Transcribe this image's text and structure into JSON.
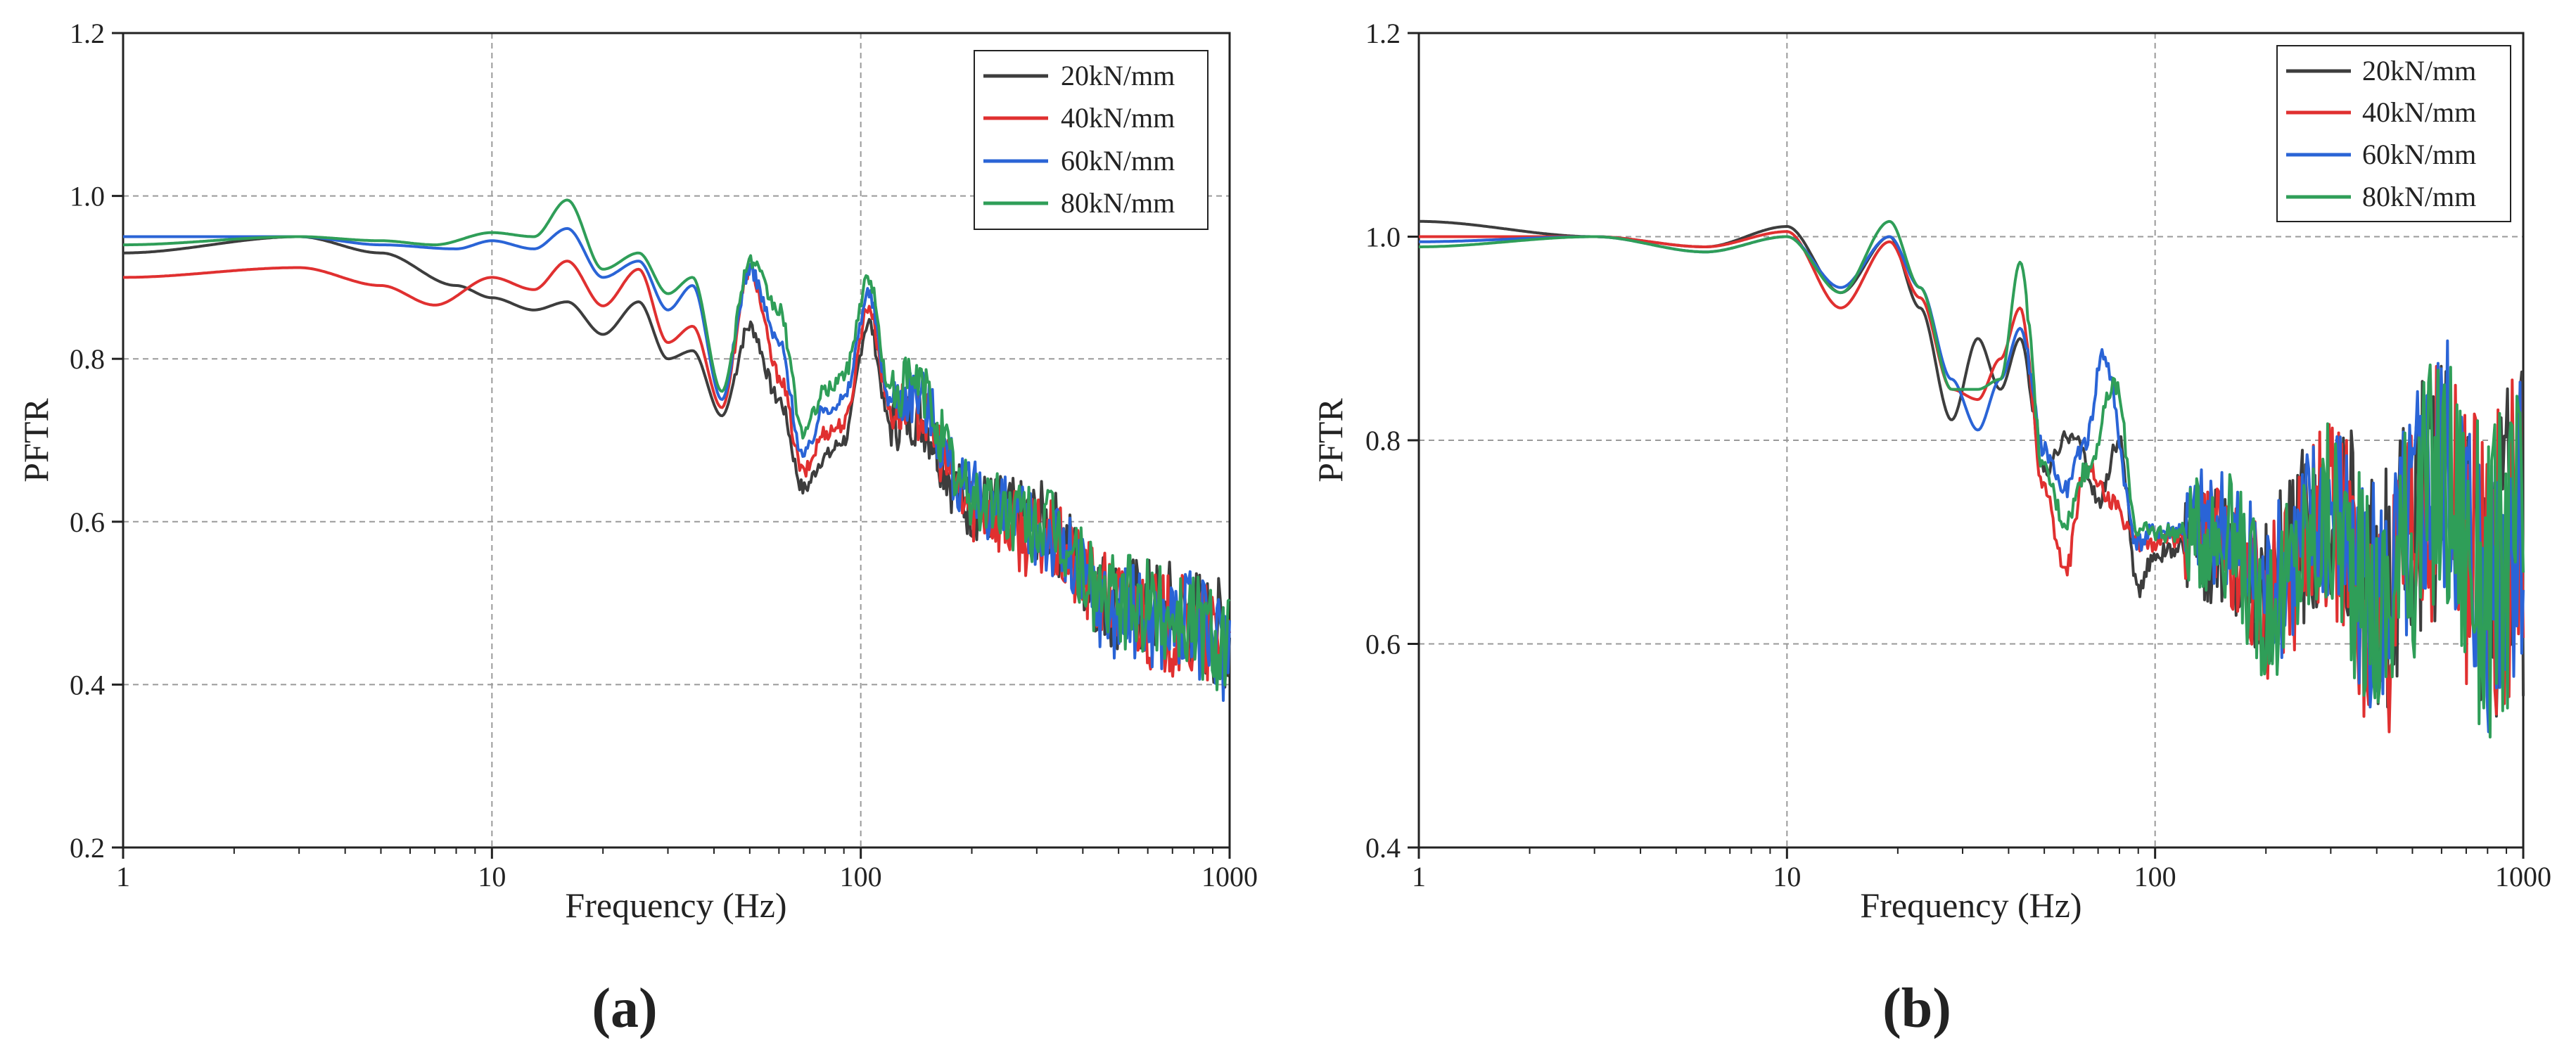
{
  "chart_data": [
    {
      "type": "line",
      "panel": "(a)",
      "xlabel": "Frequency (Hz)",
      "ylabel": "PFTR",
      "xscale": "log",
      "xlim": [
        1,
        1000
      ],
      "ylim": [
        0.2,
        1.2
      ],
      "xticks": [
        1,
        10,
        100,
        1000
      ],
      "xtick_labels": [
        "1",
        "10",
        "100",
        "1000"
      ],
      "yticks": [
        0.2,
        0.4,
        0.6,
        0.8,
        1.0,
        1.2
      ],
      "ytick_labels": [
        "0.2",
        "0.4",
        "0.6",
        "0.8",
        "1.0",
        "1.2"
      ],
      "grid": true,
      "legend": "top-right",
      "series": [
        {
          "name": "20kN/mm",
          "color": "#3d3d3d",
          "x": [
            1,
            3,
            5,
            8,
            10,
            13,
            16,
            20,
            25,
            30,
            35,
            42,
            50,
            60,
            70,
            80,
            90,
            105,
            120,
            140,
            200,
            300,
            500,
            700,
            1000
          ],
          "y": [
            0.93,
            0.95,
            0.93,
            0.89,
            0.875,
            0.86,
            0.87,
            0.83,
            0.87,
            0.8,
            0.81,
            0.73,
            0.84,
            0.75,
            0.64,
            0.68,
            0.7,
            0.845,
            0.72,
            0.73,
            0.62,
            0.6,
            0.5,
            0.49,
            0.46
          ]
        },
        {
          "name": "40kN/mm",
          "color": "#e03030",
          "x": [
            1,
            3,
            5,
            7,
            10,
            13,
            16,
            20,
            25,
            30,
            35,
            42,
            50,
            60,
            70,
            80,
            90,
            105,
            120,
            140,
            200,
            300,
            500,
            700,
            1000
          ],
          "y": [
            0.9,
            0.912,
            0.89,
            0.866,
            0.9,
            0.885,
            0.92,
            0.865,
            0.91,
            0.82,
            0.84,
            0.74,
            0.91,
            0.78,
            0.66,
            0.71,
            0.72,
            0.865,
            0.74,
            0.74,
            0.62,
            0.58,
            0.5,
            0.47,
            0.45
          ]
        },
        {
          "name": "60kN/mm",
          "color": "#2a64d6",
          "x": [
            1,
            3,
            5,
            8,
            10,
            13,
            16,
            20,
            25,
            30,
            35,
            42,
            50,
            60,
            70,
            80,
            90,
            105,
            120,
            140,
            200,
            300,
            500,
            700,
            1000
          ],
          "y": [
            0.95,
            0.95,
            0.94,
            0.935,
            0.945,
            0.935,
            0.96,
            0.9,
            0.92,
            0.86,
            0.89,
            0.75,
            0.91,
            0.82,
            0.68,
            0.74,
            0.75,
            0.88,
            0.75,
            0.76,
            0.63,
            0.59,
            0.49,
            0.48,
            0.45
          ]
        },
        {
          "name": "80kN/mm",
          "color": "#2f9e58",
          "x": [
            1,
            3,
            5,
            7,
            10,
            13,
            16,
            20,
            25,
            30,
            35,
            42,
            50,
            60,
            70,
            80,
            90,
            105,
            120,
            140,
            200,
            300,
            500,
            700,
            1000
          ],
          "y": [
            0.94,
            0.95,
            0.945,
            0.94,
            0.955,
            0.95,
            0.995,
            0.91,
            0.93,
            0.88,
            0.9,
            0.76,
            0.92,
            0.86,
            0.71,
            0.76,
            0.78,
            0.9,
            0.76,
            0.77,
            0.63,
            0.6,
            0.5,
            0.49,
            0.46
          ]
        }
      ]
    },
    {
      "type": "line",
      "panel": "(b)",
      "xlabel": "Frequency (Hz)",
      "ylabel": "PFTR",
      "xscale": "log",
      "xlim": [
        1,
        1000
      ],
      "ylim": [
        0.4,
        1.2
      ],
      "xticks": [
        1,
        10,
        100,
        1000
      ],
      "xtick_labels": [
        "1",
        "10",
        "100",
        "1000"
      ],
      "yticks": [
        0.4,
        0.6,
        0.8,
        1.0,
        1.2
      ],
      "ytick_labels": [
        "0.4",
        "0.6",
        "0.8",
        "1.0",
        "1.2"
      ],
      "grid": true,
      "legend": "top-right",
      "series": [
        {
          "name": "20kN/mm",
          "color": "#3d3d3d",
          "x": [
            1,
            3,
            6,
            10,
            14,
            19,
            23,
            28,
            33,
            38,
            43,
            50,
            60,
            70,
            80,
            90,
            100,
            150,
            200,
            300,
            400,
            600,
            800,
            1000
          ],
          "y": [
            1.015,
            1.0,
            0.99,
            1.01,
            0.945,
            1.0,
            0.93,
            0.82,
            0.9,
            0.85,
            0.9,
            0.77,
            0.81,
            0.74,
            0.8,
            0.65,
            0.69,
            0.7,
            0.66,
            0.74,
            0.65,
            0.75,
            0.68,
            0.7
          ]
        },
        {
          "name": "40kN/mm",
          "color": "#e03030",
          "x": [
            1,
            3,
            6,
            10,
            14,
            19,
            23,
            28,
            33,
            38,
            43,
            50,
            57,
            65,
            75,
            90,
            100,
            150,
            200,
            300,
            400,
            600,
            800,
            1000
          ],
          "y": [
            1.0,
            1.0,
            0.99,
            1.005,
            0.93,
            0.995,
            0.94,
            0.85,
            0.84,
            0.88,
            0.93,
            0.75,
            0.67,
            0.78,
            0.74,
            0.7,
            0.7,
            0.71,
            0.64,
            0.72,
            0.62,
            0.74,
            0.66,
            0.72
          ]
        },
        {
          "name": "60kN/mm",
          "color": "#2a64d6",
          "x": [
            1,
            3,
            6,
            10,
            14,
            19,
            23,
            28,
            33,
            38,
            43,
            50,
            57,
            65,
            72,
            90,
            100,
            150,
            200,
            300,
            400,
            600,
            800,
            1000
          ],
          "y": [
            0.995,
            1.0,
            0.985,
            1.0,
            0.95,
            1.0,
            0.95,
            0.86,
            0.81,
            0.86,
            0.91,
            0.79,
            0.75,
            0.8,
            0.885,
            0.7,
            0.71,
            0.72,
            0.65,
            0.73,
            0.64,
            0.77,
            0.67,
            0.73
          ]
        },
        {
          "name": "80kN/mm",
          "color": "#2f9e58",
          "x": [
            1,
            3,
            6,
            10,
            14,
            19,
            23,
            28,
            33,
            38,
            43,
            50,
            57,
            65,
            78,
            90,
            100,
            150,
            200,
            300,
            400,
            600,
            800,
            1000
          ],
          "y": [
            0.99,
            1.0,
            0.985,
            1.0,
            0.945,
            1.015,
            0.95,
            0.85,
            0.85,
            0.86,
            0.975,
            0.77,
            0.72,
            0.77,
            0.855,
            0.71,
            0.71,
            0.71,
            0.64,
            0.72,
            0.63,
            0.76,
            0.66,
            0.71
          ]
        }
      ]
    }
  ]
}
